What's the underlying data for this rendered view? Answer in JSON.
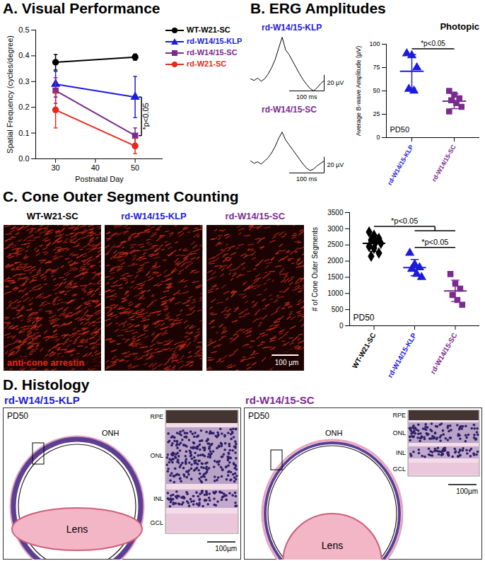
{
  "chart_data": [
    {
      "title": "A. Visual Performance",
      "type": "line",
      "x": [
        30,
        50
      ],
      "xlim": [
        25,
        57
      ],
      "xticks": [
        30,
        40,
        50
      ],
      "xlabel": "Postnatal Day",
      "ylim": [
        0,
        0.5
      ],
      "yticks": [
        {
          "value": 0,
          "label": "0.0"
        },
        0.1,
        0.2,
        0.3,
        0.4,
        0.5
      ],
      "ylabel": "Spatial Frequency (cycles/degree)",
      "legend": "top-right",
      "series": [
        {
          "name": "WT-W21-SC",
          "color": "#000000",
          "marker": "circle",
          "values": [
            0.375,
            0.395
          ],
          "errors": [
            0.03,
            0.012
          ]
        },
        {
          "name": "rd-W14/15-KLP",
          "color": "#1c1cdc",
          "marker": "triangle",
          "values": [
            0.29,
            0.24
          ],
          "errors": [
            0.05,
            0.08
          ]
        },
        {
          "name": "rd-W14/15-SC",
          "color": "#7b2b8f",
          "marker": "square",
          "values": [
            0.265,
            0.09
          ],
          "errors": [
            0.05,
            0.03
          ]
        },
        {
          "name": "rd-W21-SC",
          "color": "#e8281e",
          "marker": "circle",
          "values": [
            0.19,
            0.05
          ],
          "errors": [
            0.07,
            0.03
          ]
        }
      ],
      "annotations": [
        {
          "text": "*p<0.05",
          "x": 50,
          "between": [
            "rd-W14/15-KLP",
            "rd-W14/15-SC"
          ]
        }
      ]
    },
    {
      "title": "B. ERG Amplitudes",
      "type": "trace",
      "tick_labels": false,
      "x": [
        0,
        10,
        20,
        30,
        40,
        50,
        60,
        70,
        80,
        90,
        100,
        110,
        120,
        130,
        140,
        150,
        160,
        170,
        180,
        190,
        200,
        210
      ],
      "series": [
        {
          "name": "rd-W14/15-KLP",
          "color": "#1c1cdc",
          "values": [
            0,
            -2,
            1,
            -3,
            0,
            6,
            14,
            24,
            38,
            52,
            36,
            30,
            22,
            14,
            6,
            -1,
            -7,
            -12,
            -15,
            -11,
            -6,
            -2
          ]
        },
        {
          "name": "rd-W14/15-SC",
          "color": "#7b2b8f",
          "values": [
            0,
            -3,
            -1,
            -4,
            0,
            4,
            10,
            18,
            28,
            36,
            26,
            20,
            14,
            8,
            2,
            -4,
            -9,
            -12,
            -10,
            -6,
            -3,
            0
          ]
        }
      ],
      "scalebar": {
        "x": 100,
        "x_label": "100 ms",
        "y": 20,
        "y_label": "20 µV"
      }
    },
    {
      "title": "Photopic",
      "type": "scatter",
      "ylabel": "Average B-wave Amplitude (µV)",
      "ylim": [
        0,
        100
      ],
      "yticks": [
        0,
        25,
        50,
        75,
        100
      ],
      "series": [
        {
          "name": "rd-W14/15-KLP",
          "color": "#1c1cdc",
          "marker": "triangle",
          "values": [
            90,
            88,
            75,
            52,
            50
          ],
          "mean": 71,
          "sd": 18
        },
        {
          "name": "rd-W14/15-SC",
          "color": "#7b2b8f",
          "marker": "square",
          "values": [
            50,
            46,
            42,
            40,
            37,
            33,
            28
          ],
          "mean": 39,
          "sd": 8
        }
      ],
      "annotations": [
        {
          "text": "*p<0.05",
          "between": [
            "rd-W14/15-KLP",
            "rd-W14/15-SC"
          ]
        },
        {
          "text": "PD50"
        }
      ]
    },
    {
      "title": "C. Cone Outer Segment Counting",
      "type": "image",
      "panels": [
        {
          "label": "WT-W21-SC",
          "color": "#000000"
        },
        {
          "label": "rd-W14/15-KLP",
          "color": "#1c1cdc"
        },
        {
          "label": "rd-W14/15-SC",
          "color": "#7b2b8f"
        }
      ],
      "stain": {
        "text": "anti-cone arrestin",
        "color": "#e8281e"
      },
      "scalebar": "100 µm"
    },
    {
      "type": "scatter",
      "ylabel": "# of Cone Outer Segments",
      "ylim": [
        0,
        3500
      ],
      "yticks": [
        0,
        500,
        1000,
        1500,
        2000,
        2500,
        3000,
        3500
      ],
      "series": [
        {
          "name": "WT-W21-SC",
          "color": "#000000",
          "marker": "diamond",
          "values": [
            2900,
            2800,
            2700,
            2650,
            2600,
            2550,
            2450,
            2400,
            2250,
            2150
          ],
          "mean": 2550,
          "sd": 250
        },
        {
          "name": "rd-W14/15-KLP",
          "color": "#1c1cdc",
          "marker": "triangle",
          "values": [
            2250,
            1900,
            1800,
            1750,
            1600,
            1500
          ],
          "mean": 1800,
          "sd": 250
        },
        {
          "name": "rd-W14/15-SC",
          "color": "#7b2b8f",
          "marker": "square",
          "values": [
            1600,
            1300,
            1150,
            950,
            800,
            650
          ],
          "mean": 1080,
          "sd": 330
        }
      ],
      "annotations": [
        {
          "text": "*p<0.05",
          "between": [
            "WT-W21-SC",
            "rd-W14/15-KLP",
            "rd-W14/15-SC"
          ]
        },
        {
          "text": "*p<0.05",
          "between": [
            "rd-W14/15-KLP",
            "rd-W14/15-SC"
          ]
        },
        {
          "text": "PD50"
        }
      ]
    },
    {
      "title": "D. Histology",
      "type": "histology",
      "panels": [
        {
          "label": "rd-W14/15-KLP",
          "color": "#1c1cdc",
          "texts": {
            "stage": "PD50",
            "landmark": "ONH",
            "lens": "Lens"
          },
          "layers": [
            "RPE",
            "ONL",
            "INL",
            "GCL"
          ],
          "scalebar": "100µm"
        },
        {
          "label": "rd-W14/15-SC",
          "color": "#7b2b8f",
          "texts": {
            "stage": "PD50",
            "landmark": "ONH",
            "lens": "Lens"
          },
          "layers": [
            "RPE",
            "ONL",
            "INL",
            "GCL"
          ],
          "scalebar": "100µm"
        }
      ]
    }
  ]
}
